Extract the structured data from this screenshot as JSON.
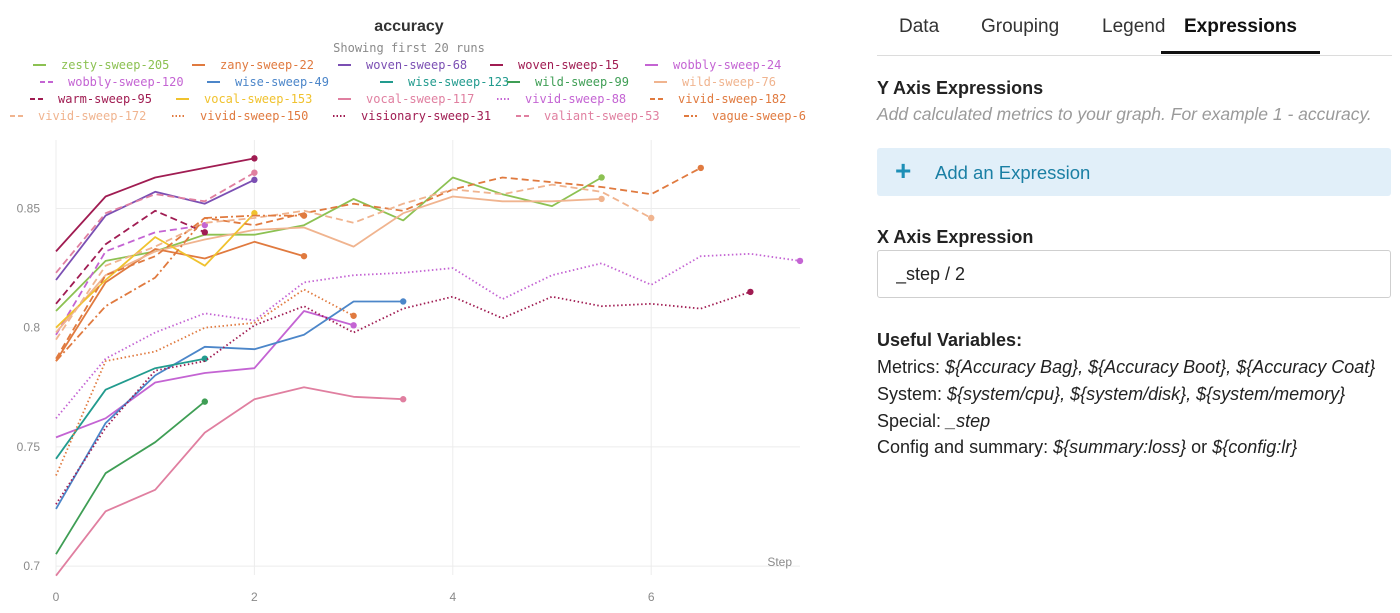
{
  "tabs": [
    {
      "label": "Data",
      "active": false
    },
    {
      "label": "Grouping",
      "active": false
    },
    {
      "label": "Legend",
      "active": false
    },
    {
      "label": "Expressions",
      "active": true
    }
  ],
  "y_expressions": {
    "heading": "Y Axis Expressions",
    "hint": "Add calculated metrics to your graph. For example 1 - accuracy.",
    "add_button": "Add an Expression"
  },
  "x_expression": {
    "heading": "X Axis Expression",
    "value": "_step / 2"
  },
  "useful_variables": {
    "heading": "Useful Variables:",
    "metrics_label": "Metrics:",
    "metrics_value": "${Accuracy Bag}, ${Accuracy Boot}, ${Accuracy Coat}",
    "system_label": "System:",
    "system_value": "${system/cpu}, ${system/disk}, ${system/memory}",
    "special_label": "Special:",
    "special_value": "_step",
    "config_label": "Config and summary:",
    "config_value_1": "${summary:loss}",
    "config_or": "or",
    "config_value_2": "${config:lr}"
  },
  "chart_data": {
    "type": "line",
    "title": "accuracy",
    "subtitle": "Showing first 20 runs",
    "xlabel": "Step",
    "ylabel": "",
    "xlim": [
      0,
      7.5
    ],
    "ylim": [
      0.69,
      0.885
    ],
    "xticks": [
      0,
      2,
      4,
      6
    ],
    "yticks": [
      0.7,
      0.75,
      0.8,
      0.85
    ],
    "ytick_labels": [
      "0.7",
      "0.75",
      "0.8",
      "0.85"
    ],
    "grid": true,
    "legend_position": "top",
    "series": [
      {
        "name": "zesty-sweep-205",
        "color": "#8cc152",
        "dash": "solid",
        "x": [
          0,
          0.5,
          1,
          1.5,
          2,
          2.5,
          3,
          3.5,
          4,
          4.5,
          5,
          5.5
        ],
        "values": [
          0.807,
          0.828,
          0.832,
          0.839,
          0.839,
          0.843,
          0.854,
          0.845,
          0.863,
          0.856,
          0.851,
          0.863
        ]
      },
      {
        "name": "zany-sweep-22",
        "color": "#e07a3f",
        "dash": "solid",
        "x": [
          0,
          0.5,
          1,
          1.5,
          2,
          2.5
        ],
        "values": [
          0.786,
          0.819,
          0.833,
          0.829,
          0.836,
          0.83
        ]
      },
      {
        "name": "woven-sweep-68",
        "color": "#7b4fb3",
        "dash": "solid",
        "x": [
          0,
          0.5,
          1,
          1.5,
          2
        ],
        "values": [
          0.82,
          0.847,
          0.857,
          0.852,
          0.862
        ]
      },
      {
        "name": "woven-sweep-15",
        "color": "#a01c52",
        "dash": "solid",
        "x": [
          0,
          0.5,
          1,
          1.5,
          2
        ],
        "values": [
          0.832,
          0.855,
          0.863,
          0.867,
          0.871
        ]
      },
      {
        "name": "wobbly-sweep-24",
        "color": "#c464d3",
        "dash": "solid",
        "x": [
          0,
          0.5,
          1,
          1.5,
          2,
          2.5,
          3
        ],
        "values": [
          0.754,
          0.762,
          0.777,
          0.781,
          0.783,
          0.807,
          0.801
        ]
      },
      {
        "name": "wobbly-sweep-120",
        "color": "#c464d3",
        "dash": "dash",
        "x": [
          0,
          0.5,
          1,
          1.5
        ],
        "values": [
          0.797,
          0.832,
          0.84,
          0.843
        ]
      },
      {
        "name": "wise-sweep-49",
        "color": "#4c86c9",
        "dash": "solid",
        "x": [
          0,
          0.5,
          1,
          1.5,
          2,
          2.5,
          3,
          3.5
        ],
        "values": [
          0.724,
          0.76,
          0.78,
          0.792,
          0.791,
          0.797,
          0.811,
          0.811
        ]
      },
      {
        "name": "wise-sweep-123",
        "color": "#229b8e",
        "dash": "solid",
        "x": [
          0,
          0.5,
          1,
          1.5
        ],
        "values": [
          0.745,
          0.774,
          0.783,
          0.787
        ]
      },
      {
        "name": "wild-sweep-99",
        "color": "#3f9e55",
        "dash": "solid",
        "x": [
          0,
          0.5,
          1,
          1.5
        ],
        "values": [
          0.705,
          0.739,
          0.752,
          0.769
        ]
      },
      {
        "name": "wild-sweep-76",
        "color": "#f0b48f",
        "dash": "solid",
        "x": [
          0,
          0.5,
          1,
          1.5,
          2,
          2.5,
          3,
          3.5,
          4,
          4.5,
          5,
          5.5
        ],
        "values": [
          0.798,
          0.822,
          0.832,
          0.837,
          0.841,
          0.842,
          0.834,
          0.848,
          0.855,
          0.853,
          0.853,
          0.854
        ]
      },
      {
        "name": "warm-sweep-95",
        "color": "#a01c52",
        "dash": "dash",
        "x": [
          0,
          0.5,
          1,
          1.5
        ],
        "values": [
          0.81,
          0.835,
          0.849,
          0.84
        ]
      },
      {
        "name": "vocal-sweep-153",
        "color": "#f0c22e",
        "dash": "solid",
        "x": [
          0,
          0.5,
          1,
          1.5,
          2
        ],
        "values": [
          0.8,
          0.82,
          0.838,
          0.826,
          0.848
        ]
      },
      {
        "name": "vocal-sweep-117",
        "color": "#e07fa0",
        "dash": "solid",
        "x": [
          0,
          0.5,
          1,
          1.5,
          2,
          2.5,
          3,
          3.5
        ],
        "values": [
          0.696,
          0.723,
          0.732,
          0.756,
          0.77,
          0.775,
          0.771,
          0.77
        ]
      },
      {
        "name": "vivid-sweep-88",
        "color": "#c464d3",
        "dash": "dot",
        "x": [
          0,
          0.5,
          1,
          1.5,
          2,
          2.5,
          3,
          3.5,
          4,
          4.5,
          5,
          5.5,
          6,
          6.5,
          7,
          7.5
        ],
        "values": [
          0.762,
          0.787,
          0.798,
          0.806,
          0.803,
          0.819,
          0.822,
          0.823,
          0.825,
          0.812,
          0.822,
          0.827,
          0.818,
          0.83,
          0.831,
          0.828
        ]
      },
      {
        "name": "vivid-sweep-182",
        "color": "#e07a3f",
        "dash": "dash",
        "x": [
          0,
          0.5,
          1,
          1.5,
          2,
          2.5,
          3,
          3.5,
          4,
          4.5,
          5,
          5.5,
          6,
          6.5
        ],
        "values": [
          0.787,
          0.822,
          0.83,
          0.846,
          0.843,
          0.848,
          0.852,
          0.849,
          0.858,
          0.863,
          0.861,
          0.859,
          0.856,
          0.867
        ]
      },
      {
        "name": "vivid-sweep-172",
        "color": "#f0b48f",
        "dash": "dash",
        "x": [
          0,
          0.5,
          1,
          1.5,
          2,
          2.5,
          3,
          3.5,
          4,
          4.5,
          5,
          5.5,
          6
        ],
        "values": [
          0.795,
          0.826,
          0.834,
          0.844,
          0.846,
          0.849,
          0.844,
          0.852,
          0.858,
          0.856,
          0.86,
          0.857,
          0.846
        ]
      },
      {
        "name": "vivid-sweep-150",
        "color": "#e07a3f",
        "dash": "dot",
        "x": [
          0,
          0.5,
          1,
          1.5,
          2,
          2.5,
          3
        ],
        "values": [
          0.738,
          0.786,
          0.79,
          0.8,
          0.802,
          0.816,
          0.805
        ]
      },
      {
        "name": "visionary-sweep-31",
        "color": "#a01c52",
        "dash": "dot",
        "x": [
          0,
          0.5,
          1,
          1.5,
          2,
          2.5,
          3,
          3.5,
          4,
          4.5,
          5,
          5.5,
          6,
          6.5,
          7
        ],
        "values": [
          0.726,
          0.758,
          0.782,
          0.786,
          0.801,
          0.809,
          0.798,
          0.808,
          0.813,
          0.804,
          0.813,
          0.809,
          0.81,
          0.808,
          0.815
        ]
      },
      {
        "name": "valiant-sweep-53",
        "color": "#e07fa0",
        "dash": "dash",
        "x": [
          0,
          0.5,
          1,
          1.5,
          2
        ],
        "values": [
          0.823,
          0.848,
          0.856,
          0.853,
          0.865
        ]
      },
      {
        "name": "vague-sweep-6",
        "color": "#e07a3f",
        "dash": "dashdot",
        "x": [
          0,
          0.5,
          1,
          1.5,
          2,
          2.5
        ],
        "values": [
          0.786,
          0.809,
          0.821,
          0.846,
          0.847,
          0.847
        ]
      }
    ]
  }
}
